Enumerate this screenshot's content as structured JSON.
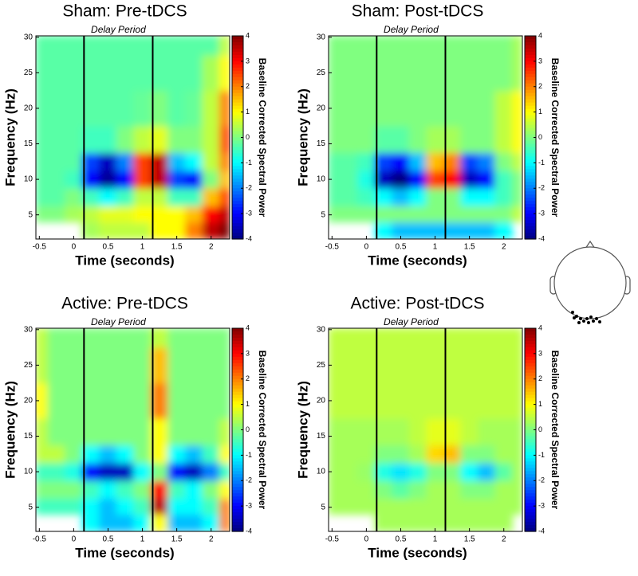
{
  "chart_data": [
    {
      "type": "heatmap",
      "title": "Sham: Pre-tDCS",
      "annotation": "Delay Period",
      "xlabel": "Time (seconds)",
      "ylabel": "Frequency (Hz)",
      "colorbar_label": "Baseline Corrected Spectral Power",
      "colormap": "jet",
      "x": [
        -0.5,
        -0.25,
        0,
        0.25,
        0.5,
        0.75,
        1,
        1.25,
        1.5,
        1.75,
        2,
        2.25
      ],
      "y": [
        3,
        5,
        7.5,
        10,
        12.5,
        15,
        20,
        25,
        30
      ],
      "values": [
        [
          null,
          null,
          null,
          0.3,
          0.5,
          0.5,
          0.5,
          1,
          1,
          2,
          3.5,
          4
        ],
        [
          0,
          0,
          0.3,
          0.5,
          0.8,
          0.8,
          1,
          1,
          1,
          1.5,
          3,
          3.5
        ],
        [
          -0.3,
          -0.3,
          0,
          -0.5,
          -1,
          -0.5,
          0.5,
          0.5,
          -0.5,
          -0.5,
          1.5,
          2.5
        ],
        [
          -0.3,
          -0.3,
          -0.5,
          -3,
          -3.8,
          -3,
          2.5,
          3.5,
          -2.5,
          -3,
          0,
          1.5
        ],
        [
          -0.3,
          -0.3,
          -0.3,
          -2.5,
          -3.5,
          -2,
          2.5,
          3.5,
          -1.5,
          -1,
          0.5,
          2
        ],
        [
          -0.3,
          -0.3,
          -0.3,
          -0.5,
          -0.5,
          0,
          0.5,
          0.8,
          0,
          0,
          0.5,
          2.5
        ],
        [
          -0.3,
          -0.3,
          -0.3,
          -0.3,
          -0.3,
          -0.3,
          -0.2,
          0,
          -0.3,
          -0.2,
          0.5,
          2
        ],
        [
          -0.3,
          -0.3,
          -0.3,
          -0.3,
          -0.3,
          -0.3,
          -0.3,
          -0.3,
          -0.3,
          -0.3,
          0.3,
          1
        ],
        [
          -0.3,
          -0.3,
          -0.3,
          -0.3,
          -0.3,
          -0.3,
          -0.3,
          -0.3,
          -0.3,
          -0.3,
          -0.3,
          0.5
        ]
      ],
      "xlim": [
        -0.55,
        2.27
      ],
      "ylim": [
        1.6,
        30.2
      ],
      "xticks": [
        -0.5,
        0,
        0.5,
        1,
        1.5,
        2
      ],
      "yticks": [
        5,
        10,
        15,
        20,
        25,
        30
      ],
      "clim": [
        -4,
        4
      ],
      "cticks": [
        -4,
        -3,
        -2,
        -1,
        0,
        1,
        2,
        3,
        4
      ],
      "vlines": [
        0.15,
        1.15
      ]
    },
    {
      "type": "heatmap",
      "title": "Sham: Post-tDCS",
      "annotation": "Delay Period",
      "xlabel": "Time (seconds)",
      "ylabel": "Frequency (Hz)",
      "colorbar_label": "Baseline Corrected Spectral Power",
      "colormap": "jet",
      "x": [
        -0.5,
        -0.25,
        0,
        0.25,
        0.5,
        0.75,
        1,
        1.25,
        1.5,
        1.75,
        2,
        2.25
      ],
      "y": [
        3,
        5,
        7.5,
        10,
        12.5,
        15,
        20,
        25,
        30
      ],
      "values": [
        [
          null,
          null,
          null,
          -1,
          -1.5,
          -1.5,
          -1.5,
          -1.5,
          -1.5,
          -1.5,
          -1,
          null
        ],
        [
          0,
          0,
          0,
          0,
          0,
          0,
          0,
          0,
          0,
          0,
          0,
          0.5
        ],
        [
          -0.3,
          -0.3,
          -0.5,
          -1,
          -1.5,
          -1,
          0,
          0,
          -1,
          -1,
          -0.5,
          0
        ],
        [
          -0.3,
          -0.3,
          -0.8,
          -3.5,
          -4,
          -3,
          2.5,
          3,
          -3.5,
          -3,
          -0.5,
          0
        ],
        [
          -0.3,
          -0.3,
          -0.5,
          -2.5,
          -3,
          -1.5,
          1.5,
          2,
          -2.5,
          -2,
          0,
          0.5
        ],
        [
          0,
          0,
          0,
          -0.3,
          -0.3,
          0,
          0.3,
          0.3,
          0,
          0,
          0.5,
          1
        ],
        [
          0,
          0,
          0,
          0,
          0,
          0,
          0,
          0,
          0,
          0,
          0.5,
          1
        ],
        [
          0,
          0,
          0,
          0,
          0,
          0,
          0,
          0,
          0,
          0,
          0,
          0.3
        ],
        [
          0,
          0,
          0,
          0,
          0,
          0,
          0,
          0,
          0,
          0,
          0,
          0.3
        ]
      ],
      "xlim": [
        -0.55,
        2.27
      ],
      "ylim": [
        1.6,
        30.2
      ],
      "xticks": [
        -0.5,
        0,
        0.5,
        1,
        1.5,
        2
      ],
      "yticks": [
        5,
        10,
        15,
        20,
        25,
        30
      ],
      "clim": [
        -4,
        4
      ],
      "cticks": [
        -4,
        -3,
        -2,
        -1,
        0,
        1,
        2,
        3,
        4
      ],
      "vlines": [
        0.15,
        1.15
      ]
    },
    {
      "type": "heatmap",
      "title": "Active: Pre-tDCS",
      "annotation": "Delay Period",
      "xlabel": "Time (seconds)",
      "ylabel": "Frequency (Hz)",
      "colorbar_label": "Baseline Corrected Spectral Power",
      "colormap": "jet",
      "x": [
        -0.5,
        -0.25,
        0,
        0.25,
        0.5,
        0.75,
        1,
        1.25,
        1.5,
        1.75,
        2,
        2.25
      ],
      "y": [
        3,
        5,
        7.5,
        10,
        12.5,
        15,
        20,
        25,
        30
      ],
      "values": [
        [
          null,
          null,
          null,
          -1,
          -1.5,
          -1.5,
          -1,
          1,
          -1.5,
          -1.5,
          -1,
          2
        ],
        [
          -0.5,
          -0.5,
          -0.5,
          -1,
          -1.5,
          -1,
          -0.5,
          3.5,
          -1,
          -1,
          -0.5,
          2
        ],
        [
          0,
          0,
          0,
          -0.5,
          -1,
          -0.5,
          0,
          3,
          -0.5,
          -1,
          0,
          1
        ],
        [
          -0.5,
          -0.5,
          -0.8,
          -3,
          -3.5,
          -3.5,
          -1,
          0,
          -3,
          -3.5,
          -2,
          -0.5
        ],
        [
          0.5,
          0.5,
          0,
          -1,
          -1.5,
          -1,
          0,
          1,
          -1,
          -1.5,
          -0.5,
          1
        ],
        [
          0.5,
          0,
          0,
          0,
          0,
          0,
          0,
          1,
          0,
          0,
          0,
          0.5
        ],
        [
          1,
          0,
          0,
          0,
          0,
          0,
          0,
          2,
          0,
          0,
          0,
          0
        ],
        [
          0.5,
          0,
          0,
          0,
          0,
          0,
          0,
          1.5,
          0,
          0,
          0,
          0
        ],
        [
          0.5,
          0,
          0,
          0,
          0,
          0,
          0,
          0.5,
          0,
          0,
          0,
          0
        ]
      ],
      "xlim": [
        -0.55,
        2.27
      ],
      "ylim": [
        1.6,
        30.2
      ],
      "xticks": [
        -0.5,
        0,
        0.5,
        1,
        1.5,
        2
      ],
      "yticks": [
        5,
        10,
        15,
        20,
        25,
        30
      ],
      "clim": [
        -4,
        4
      ],
      "cticks": [
        -4,
        -3,
        -2,
        -1,
        0,
        1,
        2,
        3,
        4
      ],
      "vlines": [
        0.15,
        1.15
      ]
    },
    {
      "type": "heatmap",
      "title": "Active: Post-tDCS",
      "annotation": "Delay Period",
      "xlabel": "Time (seconds)",
      "ylabel": "Frequency (Hz)",
      "colorbar_label": "Baseline Corrected Spectral Power",
      "colormap": "jet",
      "x": [
        -0.5,
        -0.25,
        0,
        0.25,
        0.5,
        0.75,
        1,
        1.25,
        1.5,
        1.75,
        2,
        2.25
      ],
      "y": [
        3,
        5,
        7.5,
        10,
        12.5,
        15,
        20,
        25,
        30
      ],
      "values": [
        [
          null,
          null,
          null,
          0.3,
          0.3,
          0.3,
          0.3,
          0.3,
          0.3,
          0.3,
          0.3,
          null
        ],
        [
          0.3,
          0.3,
          0.3,
          0.3,
          0.3,
          0.3,
          0.3,
          0.3,
          0.3,
          0.3,
          0.3,
          0.3
        ],
        [
          0.3,
          0.3,
          0.3,
          0,
          -0.3,
          0,
          0.3,
          0.3,
          0,
          0,
          0.3,
          0.3
        ],
        [
          0.3,
          0.3,
          0.2,
          -0.8,
          -1.2,
          -0.8,
          0,
          0,
          -1,
          -1.5,
          -0.3,
          0.3
        ],
        [
          0.3,
          0.3,
          0.3,
          0,
          0,
          0.3,
          1.3,
          1.5,
          0,
          0,
          0.3,
          0.3
        ],
        [
          0.3,
          0.3,
          0.3,
          0.3,
          0.3,
          0.5,
          0.8,
          0.8,
          0.5,
          0.3,
          0.3,
          0.3
        ],
        [
          0.5,
          0.5,
          0.5,
          0.5,
          0.5,
          0.5,
          0.5,
          0.5,
          0.5,
          0.5,
          0.5,
          0.5
        ],
        [
          0.5,
          0.5,
          0.5,
          0.5,
          0.5,
          0.5,
          0.5,
          0.5,
          0.5,
          0.5,
          0.5,
          0.5
        ],
        [
          0.5,
          0.5,
          0.5,
          0.5,
          0.5,
          0.5,
          0.5,
          0.5,
          0.5,
          0.5,
          0.5,
          0.5
        ]
      ],
      "xlim": [
        -0.55,
        2.27
      ],
      "ylim": [
        1.6,
        30.2
      ],
      "xticks": [
        -0.5,
        0,
        0.5,
        1,
        1.5,
        2
      ],
      "yticks": [
        5,
        10,
        15,
        20,
        25,
        30
      ],
      "clim": [
        -4,
        4
      ],
      "cticks": [
        -4,
        -3,
        -2,
        -1,
        0,
        1,
        2,
        3,
        4
      ],
      "vlines": [
        0.15,
        1.15
      ]
    }
  ]
}
